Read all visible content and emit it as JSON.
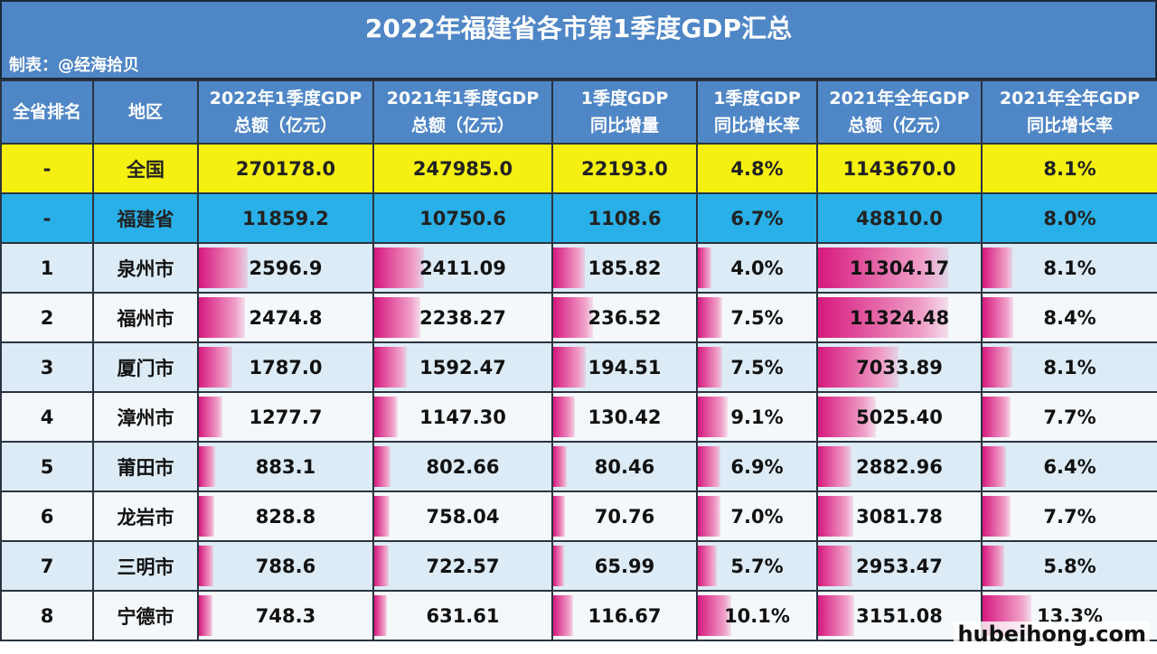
{
  "title": "2022年福建省各市第1季度GDP汇总",
  "maker": "制表：@经海拾贝",
  "headers": [
    [
      "全省排名",
      ""
    ],
    [
      "地区",
      ""
    ],
    [
      "2022年1季度GDP",
      "总额（亿元）"
    ],
    [
      "2021年1季度GDP",
      "总额（亿元）"
    ],
    [
      "1季度GDP",
      "同比增量"
    ],
    [
      "1季度GDP",
      "同比增长率"
    ],
    [
      "2021年全年GDP",
      "总额（亿元）"
    ],
    [
      "2021年全年GDP",
      "同比增长率"
    ]
  ],
  "summary_rows": [
    [
      "-",
      "全国",
      "270178.0",
      "247985.0",
      "22193.0",
      "4.8%",
      "1143670.0",
      "8.1%"
    ],
    [
      "-",
      "福建省",
      "11859.2",
      "10750.6",
      "1108.6",
      "6.7%",
      "48810.0",
      "8.0%"
    ]
  ],
  "rows": [
    [
      "1",
      "泉州市",
      "2596.9",
      "2411.09",
      "185.82",
      "4.0%",
      "11304.17",
      "8.1%"
    ],
    [
      "2",
      "福州市",
      "2474.8",
      "2238.27",
      "236.52",
      "7.5%",
      "11324.48",
      "8.4%"
    ],
    [
      "3",
      "厦门市",
      "1787.0",
      "1592.47",
      "194.51",
      "7.5%",
      "7033.89",
      "8.1%"
    ],
    [
      "4",
      "漳州市",
      "1277.7",
      "1147.30",
      "130.42",
      "9.1%",
      "5025.40",
      "7.7%"
    ],
    [
      "5",
      "莆田市",
      "883.1",
      "802.66",
      "80.46",
      "6.9%",
      "2882.96",
      "6.4%"
    ],
    [
      "6",
      "龙岩市",
      "828.8",
      "758.04",
      "70.76",
      "7.0%",
      "3081.78",
      "7.7%"
    ],
    [
      "7",
      "三明市",
      "788.6",
      "722.57",
      "65.99",
      "5.7%",
      "2953.47",
      "5.8%"
    ],
    [
      "8",
      "宁德市",
      "748.3",
      "631.61",
      "116.67",
      "10.1%",
      "3151.08",
      "13.3%"
    ]
  ],
  "watermark": "hubeihong.com",
  "colors": {
    "header": "#4f86c6",
    "national": "#f5f010",
    "province": "#2ab0e8",
    "bar": "#d6187e"
  }
}
